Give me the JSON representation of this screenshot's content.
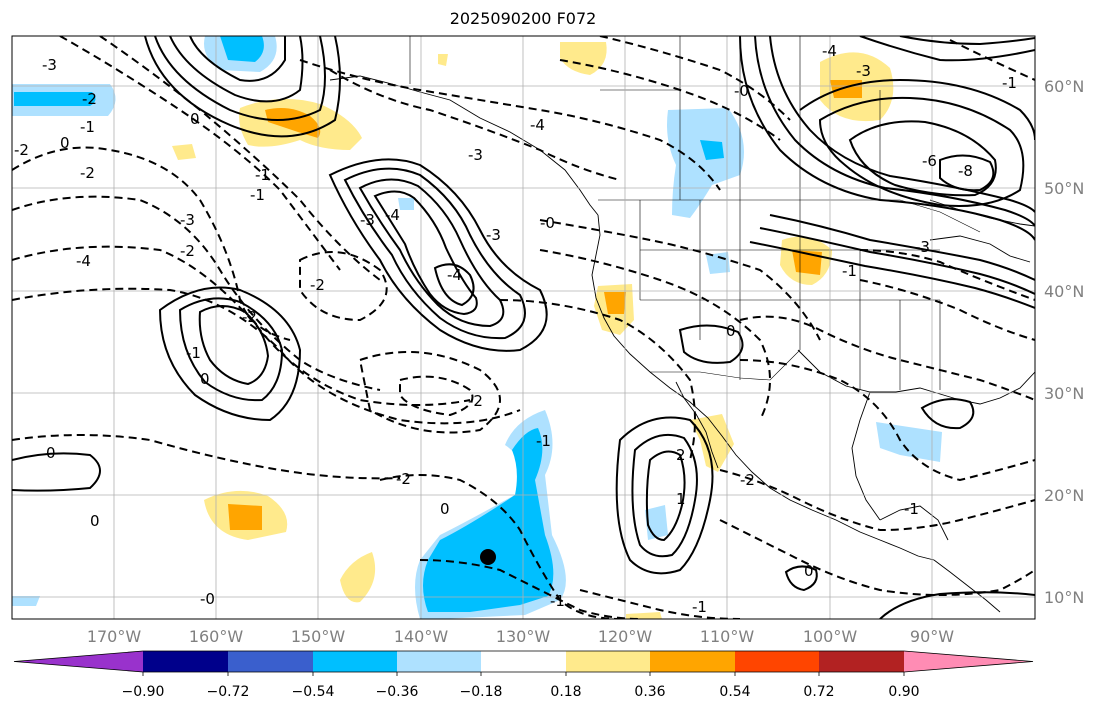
{
  "title": "2025090200 F072",
  "map": {
    "lat_ticks": [
      "60°N",
      "50°N",
      "40°N",
      "30°N",
      "20°N",
      "10°N"
    ],
    "lon_ticks": [
      "170°W",
      "160°W",
      "150°W",
      "140°W",
      "130°W",
      "120°W",
      "110°W",
      "100°W",
      "90°W"
    ],
    "contour_labels": [
      "-3",
      "-2",
      "-2",
      "0",
      "-1",
      "0",
      "-1",
      "-2",
      "-3",
      "-4",
      "-1",
      "-2",
      "-3",
      "-4",
      "-4",
      "-2",
      "-2",
      "-1",
      "0",
      "0",
      "-2",
      "-2",
      "0",
      "0",
      "-1",
      "-0",
      "-1",
      "-1",
      "-1",
      "-2",
      "-3",
      "-3",
      "-4",
      "-0",
      "0",
      "-0",
      "-4",
      "-6",
      "-8",
      "-3",
      "-3",
      "-1",
      "1",
      "0",
      "2",
      "-1"
    ],
    "colors": {
      "land_lines": "#000000",
      "grid": "#b0b0b0",
      "marker": "#000000"
    }
  },
  "colorbar": {
    "tick_labels": [
      "−0.90",
      "−0.72",
      "−0.54",
      "−0.36",
      "−0.18",
      "0.18",
      "0.36",
      "0.54",
      "0.72",
      "0.90"
    ],
    "colors": [
      "#9932cc",
      "#00008b",
      "#3a5fcd",
      "#00bfff",
      "#aee1ff",
      "#ffffff",
      "#ffea8c",
      "#ffa500",
      "#ff4500",
      "#b22222",
      "#ff8cb4"
    ]
  }
}
